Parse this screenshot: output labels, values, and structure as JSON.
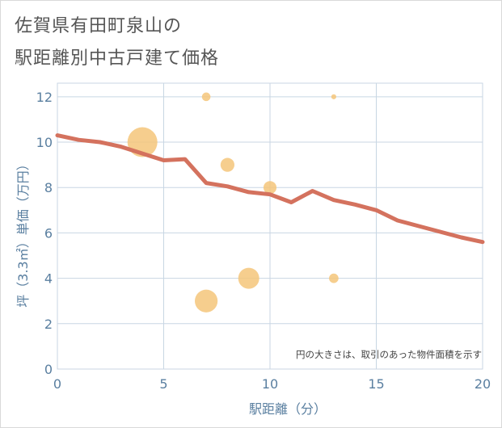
{
  "chart_data": {
    "type": "scatter+line",
    "title_lines": [
      "佐賀県有田町泉山の",
      "駅距離別中古戸建て価格"
    ],
    "xlabel": "駅距離（分）",
    "ylabel": "坪（3.3㎡）単価（万円）",
    "xlim": [
      0,
      20
    ],
    "ylim": [
      0,
      12.6
    ],
    "xticks": [
      0,
      5,
      10,
      15,
      20
    ],
    "yticks": [
      0,
      2,
      4,
      6,
      8,
      10,
      12
    ],
    "grid": true,
    "annotation": "円の大きさは、取引のあった物件面積を示す",
    "colors": {
      "line": "#d4725e",
      "bubble": "#f5c57a",
      "grid": "#c8d6e3",
      "axis_text": "#5a7fa0"
    },
    "trend_line": {
      "x": [
        0,
        1,
        2,
        3,
        4,
        5,
        6,
        7,
        8,
        9,
        10,
        11,
        12,
        13,
        14,
        15,
        16,
        17,
        18,
        19,
        20
      ],
      "y": [
        10.3,
        10.1,
        10.0,
        9.8,
        9.5,
        9.2,
        9.25,
        8.2,
        8.05,
        7.8,
        7.7,
        7.35,
        7.85,
        7.45,
        7.25,
        7.0,
        6.55,
        6.3,
        6.05,
        5.8,
        5.6
      ]
    },
    "bubbles": [
      {
        "x": 4,
        "y": 10,
        "size": 30
      },
      {
        "x": 7,
        "y": 12,
        "size": 6
      },
      {
        "x": 7,
        "y": 3,
        "size": 22
      },
      {
        "x": 8,
        "y": 9,
        "size": 12
      },
      {
        "x": 9,
        "y": 4,
        "size": 20
      },
      {
        "x": 10,
        "y": 8,
        "size": 11
      },
      {
        "x": 13,
        "y": 12,
        "size": 2
      },
      {
        "x": 13,
        "y": 4,
        "size": 7
      }
    ]
  }
}
